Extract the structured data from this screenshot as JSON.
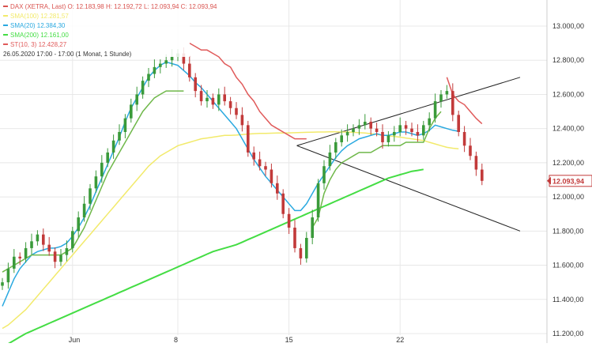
{
  "chart_data": {
    "type": "candlestick",
    "y_range": [
      11200,
      13000
    ],
    "y_ticks": [
      "13.000,00",
      "12.800,00",
      "12.600,00",
      "12.400,00",
      "12.200,00",
      "12.000,00",
      "11.800,00",
      "11.600,00",
      "11.400,00",
      "11.200,00"
    ],
    "x_ticks": [
      {
        "label": "Jun",
        "index": 12
      },
      {
        "label": "8",
        "index": 30
      },
      {
        "label": "15",
        "index": 49
      },
      {
        "label": "22",
        "index": 68
      }
    ],
    "last_price_label": "12.093,94",
    "legend": [
      {
        "name": "DAX (XETRA, Last)",
        "values": "O: 12.183,98  H: 12.192,72  L: 12.093,94  C: 12.093,94",
        "color": "#d9534f"
      },
      {
        "name": "SMA(100)",
        "values": "12.281,57",
        "color": "#f2ea6b"
      },
      {
        "name": "SMA(20)",
        "values": "12.384,30",
        "color": "#2aa9e0"
      },
      {
        "name": "SMA(200)",
        "values": "12.161,00",
        "color": "#44dd44"
      },
      {
        "name": "ST(10, 3)",
        "values": "12.428,27",
        "color": "#e05a5a"
      }
    ],
    "footnote": "26.05.2020 17:00 - 17:00   (1 Monat, 1 Stunde)",
    "price": [
      11500,
      11580,
      11650,
      11640,
      11700,
      11740,
      11780,
      11720,
      11680,
      11620,
      11660,
      11700,
      11800,
      11880,
      11960,
      12050,
      12120,
      12200,
      12260,
      12330,
      12380,
      12460,
      12540,
      12600,
      12680,
      12720,
      12760,
      12780,
      12800,
      12820,
      12840,
      12780,
      12700,
      12620,
      12560,
      12580,
      12540,
      12600,
      12560,
      12520,
      12480,
      12420,
      12260,
      12220,
      12180,
      12160,
      12080,
      12020,
      11900,
      11820,
      11700,
      11640,
      11760,
      11880,
      12080,
      12180,
      12260,
      12320,
      12360,
      12380,
      12400,
      12420,
      12440,
      12400,
      12380,
      12320,
      12360,
      12380,
      12420,
      12400,
      12380,
      12360,
      12420,
      12460,
      12560,
      12600,
      12620,
      12480,
      12380,
      12300,
      12240,
      12160,
      12093.94
    ],
    "sma20": [
      11360,
      11440,
      11520,
      11580,
      11620,
      11660,
      11680,
      11690,
      11700,
      11700,
      11710,
      11730,
      11770,
      11820,
      11880,
      11950,
      12030,
      12110,
      12190,
      12270,
      12350,
      12440,
      12520,
      12580,
      12640,
      12700,
      12740,
      12770,
      12790,
      12780,
      12770,
      12740,
      12710,
      12670,
      12640,
      12600,
      12560,
      12520,
      12480,
      12440,
      12400,
      12340,
      12280,
      12220,
      12170,
      12120,
      12080,
      12040,
      12000,
      11960,
      11920,
      11920,
      11960,
      12020,
      12080,
      12130,
      12180,
      12230,
      12270,
      12300,
      12320,
      12340,
      12350,
      12360,
      12370,
      12360,
      12360,
      12370,
      12380,
      12380,
      12370,
      12360,
      12370,
      12390,
      12420,
      12410,
      12400,
      12390,
      12384.3
    ],
    "sma100": [
      11230,
      11250,
      11280,
      11310,
      11340,
      11380,
      11420,
      11460,
      11500,
      11540,
      11580,
      11620,
      11660,
      11700,
      11740,
      11780,
      11820,
      11860,
      11900,
      11940,
      11980,
      12020,
      12060,
      12100,
      12140,
      12180,
      12210,
      12240,
      12260,
      12280,
      12300,
      12310,
      12320,
      12330,
      12340,
      12345,
      12350,
      12355,
      12360,
      12360,
      12362,
      12365,
      12368,
      12370,
      12372,
      12372,
      12373,
      12374,
      12374,
      12375,
      12376,
      12377,
      12378,
      12379,
      12380,
      12380,
      12381,
      12381,
      12380,
      12380,
      12378,
      12376,
      12374,
      12370,
      12366,
      12362,
      12358,
      12354,
      12350,
      12345,
      12340,
      12335,
      12330,
      12320,
      12310,
      12300,
      12290,
      12285,
      12281.57
    ],
    "sma200": [
      11120,
      11140,
      11160,
      11180,
      11200,
      11215,
      11230,
      11245,
      11260,
      11275,
      11290,
      11305,
      11320,
      11335,
      11350,
      11365,
      11380,
      11395,
      11410,
      11425,
      11440,
      11455,
      11470,
      11485,
      11500,
      11515,
      11530,
      11545,
      11560,
      11575,
      11590,
      11605,
      11620,
      11635,
      11650,
      11665,
      11680,
      11690,
      11700,
      11710,
      11720,
      11735,
      11750,
      11765,
      11780,
      11795,
      11810,
      11825,
      11840,
      11855,
      11870,
      11885,
      11900,
      11915,
      11930,
      11945,
      11960,
      11975,
      11990,
      12005,
      12020,
      12035,
      12050,
      12065,
      12080,
      12095,
      12110,
      12120,
      12130,
      12140,
      12150,
      12155,
      12161.0
    ],
    "st_support": [
      11560,
      11580,
      11600,
      11620,
      11640,
      11660,
      11660,
      11660,
      11660,
      11660,
      11660,
      11680,
      11700,
      11760,
      11820,
      11900,
      11980,
      12060,
      12140,
      12200,
      12260,
      12320,
      12380,
      12440,
      12500,
      12540,
      12580,
      12600,
      12620,
      12620,
      12620,
      12620,
      null,
      null,
      null,
      null,
      null,
      null,
      null,
      null,
      null,
      null,
      null,
      null,
      null,
      null,
      null,
      null,
      null,
      null,
      null,
      null,
      null,
      11820,
      11880,
      12020,
      12100,
      12160,
      12200,
      12220,
      12240,
      12260,
      12260,
      12260,
      12280,
      12300,
      12300,
      12300,
      12300,
      12320,
      12320,
      12320,
      12320,
      12400,
      12460,
      12500,
      null,
      null,
      null,
      null,
      null,
      null
    ],
    "st_resistance": [
      null,
      null,
      null,
      null,
      null,
      null,
      null,
      null,
      null,
      null,
      null,
      null,
      null,
      null,
      null,
      null,
      null,
      null,
      null,
      null,
      null,
      null,
      null,
      null,
      null,
      null,
      null,
      null,
      null,
      null,
      null,
      null,
      12900,
      12880,
      12860,
      12860,
      12840,
      12820,
      12780,
      12760,
      12700,
      12660,
      12600,
      12560,
      12500,
      12460,
      12420,
      12400,
      12380,
      12360,
      12340,
      12340,
      12340,
      null,
      null,
      null,
      null,
      null,
      null,
      null,
      null,
      null,
      null,
      null,
      null,
      null,
      null,
      null,
      null,
      null,
      null,
      null,
      null,
      null,
      null,
      null,
      12700,
      12600,
      12560,
      12540,
      12500,
      12460,
      12428.27
    ],
    "trendlines": [
      {
        "name": "upper",
        "x": [
          49,
          104
        ],
        "y": [
          12300,
          12700
        ]
      },
      {
        "name": "lower",
        "x": [
          49,
          104
        ],
        "y": [
          12300,
          11800
        ]
      }
    ]
  }
}
